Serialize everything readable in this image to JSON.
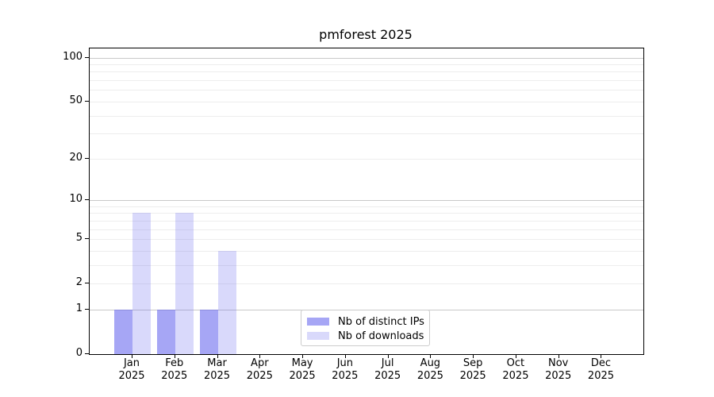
{
  "title": "pmforest 2025",
  "chart_data": {
    "type": "bar",
    "title": "pmforest 2025",
    "scale": "log1p",
    "categories": [
      "Jan",
      "Feb",
      "Mar",
      "Apr",
      "May",
      "Jun",
      "Jul",
      "Aug",
      "Sep",
      "Oct",
      "Nov",
      "Dec"
    ],
    "year_label": "2025",
    "series": [
      {
        "name": "Nb of distinct IPs",
        "color": "rgba(102,102,238,0.58)",
        "values": [
          1,
          1,
          1,
          0,
          0,
          0,
          0,
          0,
          0,
          0,
          0,
          0
        ]
      },
      {
        "name": "Nb of downloads",
        "color": "rgba(102,102,238,0.25)",
        "values": [
          8,
          8,
          4,
          0,
          0,
          0,
          0,
          0,
          0,
          0,
          0,
          0
        ]
      }
    ],
    "y_ticks": [
      0,
      1,
      2,
      5,
      10,
      20,
      50,
      100
    ],
    "ylim": [
      0,
      100
    ],
    "grid": {
      "major": [
        1,
        10,
        100
      ],
      "minor": [
        2,
        3,
        4,
        5,
        6,
        7,
        8,
        9,
        20,
        30,
        40,
        50,
        60,
        70,
        80,
        90
      ]
    },
    "legend": {
      "position": "lower center"
    },
    "colors": {
      "grid_major": "#c9c9c9",
      "grid_minor": "#ededed",
      "axis": "#000000",
      "legend_border": "#cccccc",
      "text": "#000000"
    }
  }
}
